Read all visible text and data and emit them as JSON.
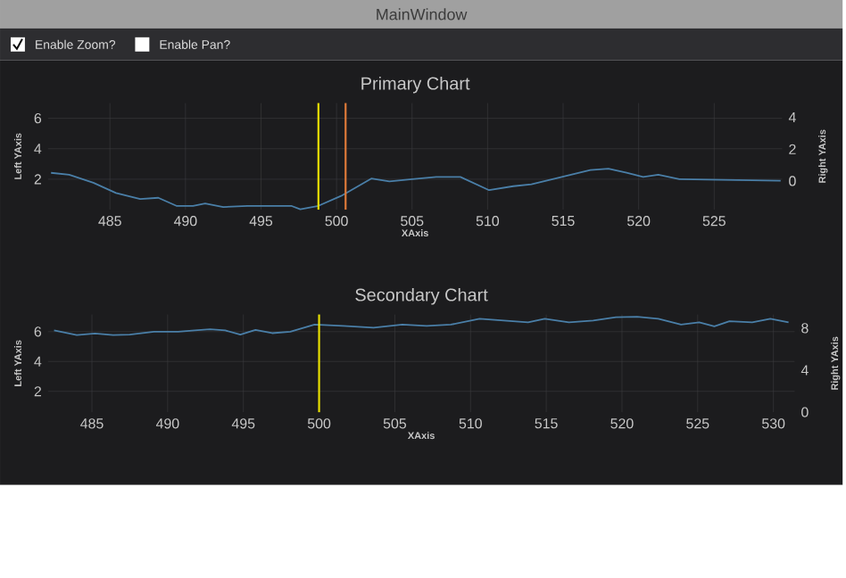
{
  "chart_data": [
    {
      "type": "line",
      "title": "Primary Chart",
      "xlabel": "XAxis",
      "ylabel": "Left YAxis",
      "y2label": "Right YAxis",
      "annotations": [
        "MainWindow",
        "Enable Zoom?",
        "Enable Pan?"
      ],
      "xlim": [
        480.9,
        529.5
      ],
      "ylim": [
        0,
        7
      ],
      "y2lim": [
        -1.8,
        4.9
      ],
      "xticks": [
        485,
        490,
        495,
        500,
        505,
        510,
        515,
        520,
        525
      ],
      "yticks": [
        2,
        4,
        6
      ],
      "y2ticks": [
        0,
        2,
        4
      ],
      "grid": true,
      "ref_lines": [
        {
          "axis": "x",
          "value": 498.8,
          "color": "#e8e000"
        },
        {
          "axis": "x",
          "value": 500.6,
          "color": "#e07b39"
        }
      ],
      "series": [
        {
          "color": "#4a7fa8",
          "x": [
            481.1,
            482.3,
            483.9,
            485.4,
            487.0,
            488.2,
            489.4,
            490.5,
            491.3,
            492.5,
            494.1,
            496.0,
            497.0,
            497.6,
            498.8,
            500.3,
            502.3,
            503.5,
            505.0,
            506.6,
            508.2,
            510.1,
            511.7,
            512.9,
            516.8,
            518.0,
            519.2,
            520.3,
            521.3,
            522.7,
            529.4
          ],
          "values": [
            2.42,
            2.3,
            1.77,
            1.09,
            0.7,
            0.78,
            0.25,
            0.25,
            0.4,
            0.17,
            0.25,
            0.25,
            0.25,
            0.02,
            0.25,
            0.9,
            2.04,
            1.85,
            2.0,
            2.15,
            2.15,
            1.28,
            1.54,
            1.66,
            2.6,
            2.69,
            2.42,
            2.15,
            2.3,
            2.0,
            1.9
          ]
        }
      ]
    },
    {
      "type": "line",
      "title": "Secondary Chart",
      "xlabel": "XAxis",
      "ylabel": "Left YAxis",
      "y2label": "Right YAxis",
      "xlim": [
        482.1,
        531.4
      ],
      "ylim": [
        0.6,
        7.15
      ],
      "y2lim": [
        0,
        9.3
      ],
      "xticks": [
        485,
        490,
        495,
        500,
        505,
        510,
        515,
        520,
        525,
        530
      ],
      "yticks": [
        2,
        4,
        6
      ],
      "y2ticks": [
        0,
        4,
        8
      ],
      "grid": true,
      "ref_lines": [
        {
          "axis": "x",
          "value": 500.0,
          "color": "#e8e000"
        }
      ],
      "series": [
        {
          "color": "#4a7fa8",
          "x": [
            482.5,
            484.0,
            485.2,
            486.4,
            487.5,
            489.1,
            490.7,
            491.8,
            492.8,
            493.8,
            494.8,
            495.8,
            496.9,
            498.1,
            499.7,
            501.6,
            503.6,
            505.5,
            507.1,
            508.7,
            510.6,
            512.2,
            513.8,
            514.9,
            516.5,
            518.1,
            519.6,
            521.0,
            522.4,
            523.9,
            525.1,
            526.1,
            527.1,
            528.6,
            529.8,
            531.0
          ],
          "values": [
            6.08,
            5.77,
            5.88,
            5.77,
            5.8,
            6.0,
            6.0,
            6.08,
            6.16,
            6.08,
            5.8,
            6.12,
            5.9,
            6.0,
            6.47,
            6.39,
            6.27,
            6.47,
            6.39,
            6.47,
            6.86,
            6.74,
            6.62,
            6.86,
            6.62,
            6.74,
            6.97,
            7.0,
            6.86,
            6.47,
            6.62,
            6.35,
            6.7,
            6.62,
            6.86,
            6.62
          ]
        }
      ]
    }
  ]
}
